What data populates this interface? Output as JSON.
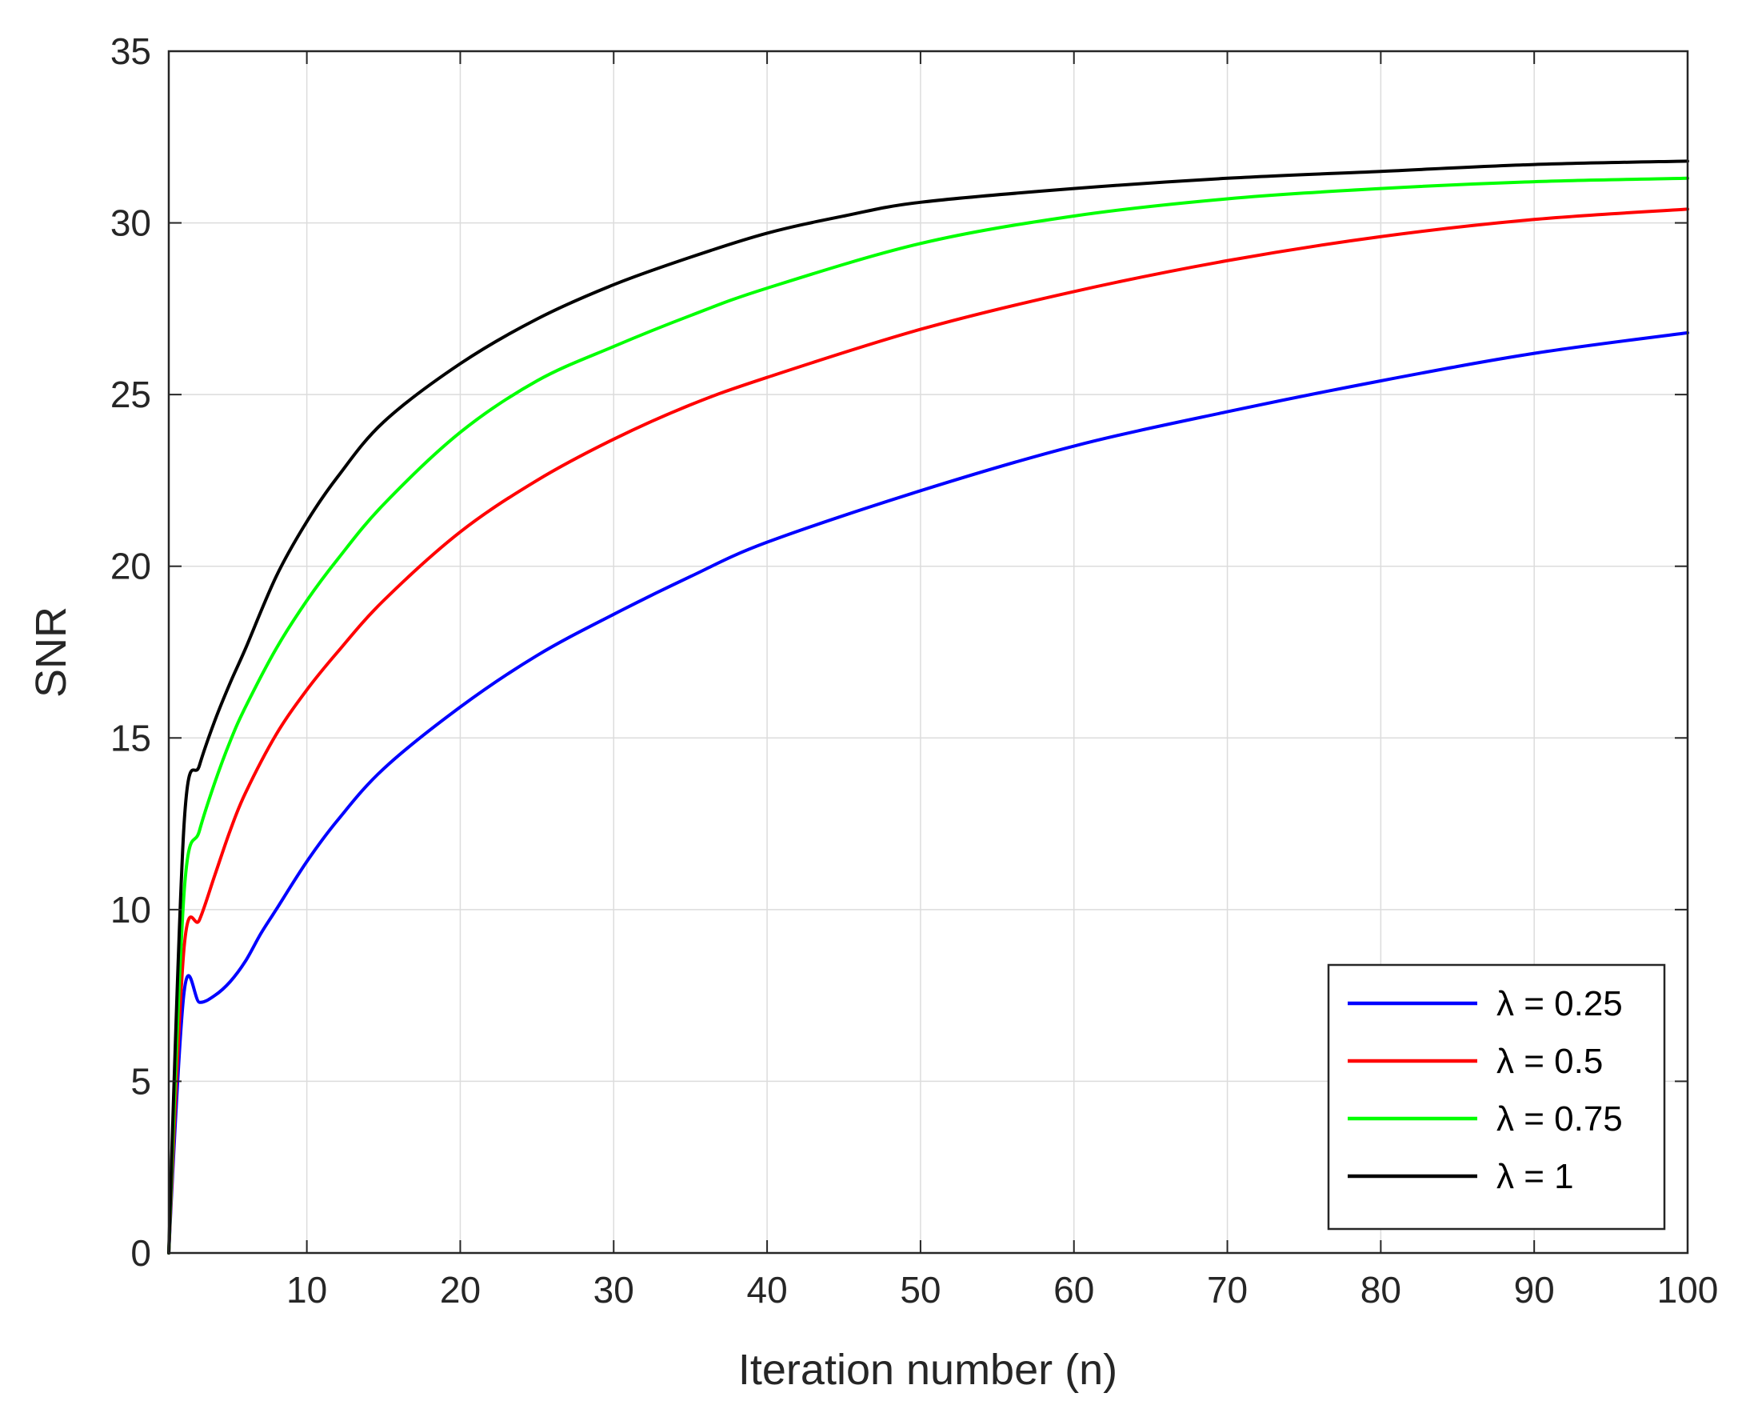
{
  "chart_data": {
    "type": "line",
    "xlabel": "Iteration number (n)",
    "ylabel": "SNR",
    "xlim": [
      1,
      100
    ],
    "ylim": [
      0,
      35
    ],
    "xticks": [
      10,
      20,
      30,
      40,
      50,
      60,
      70,
      80,
      90,
      100
    ],
    "yticks": [
      0,
      5,
      10,
      15,
      20,
      25,
      30,
      35
    ],
    "grid": true,
    "legend_position": "bottom-right",
    "series": [
      {
        "name": "λ = 0.25",
        "color": "#0000ff",
        "x": [
          1,
          2,
          3,
          4,
          5,
          6,
          7,
          8,
          10,
          12,
          15,
          20,
          25,
          30,
          35,
          40,
          50,
          60,
          70,
          80,
          90,
          100
        ],
        "y": [
          0,
          7.6,
          7.3,
          7.5,
          7.9,
          8.5,
          9.3,
          10.0,
          11.4,
          12.6,
          14.1,
          15.9,
          17.4,
          18.6,
          19.7,
          20.7,
          22.2,
          23.5,
          24.5,
          25.4,
          26.2,
          26.8
        ]
      },
      {
        "name": "λ = 0.5",
        "color": "#ff0000",
        "x": [
          1,
          2,
          3,
          4,
          5,
          6,
          8,
          10,
          12,
          15,
          20,
          25,
          30,
          35,
          40,
          50,
          60,
          70,
          80,
          90,
          100
        ],
        "y": [
          0,
          8.9,
          9.7,
          11.0,
          12.3,
          13.4,
          15.1,
          16.4,
          17.5,
          19.0,
          21.0,
          22.5,
          23.7,
          24.7,
          25.5,
          26.9,
          28.0,
          28.9,
          29.6,
          30.1,
          30.4
        ]
      },
      {
        "name": "λ = 0.75",
        "color": "#00ff00",
        "x": [
          1,
          2,
          3,
          4,
          5,
          6,
          8,
          10,
          12,
          15,
          20,
          25,
          30,
          35,
          40,
          50,
          60,
          70,
          80,
          90,
          100
        ],
        "y": [
          0,
          10.5,
          12.3,
          13.7,
          14.9,
          15.9,
          17.6,
          19.0,
          20.2,
          21.8,
          23.9,
          25.4,
          26.4,
          27.3,
          28.1,
          29.4,
          30.2,
          30.7,
          31.0,
          31.2,
          31.3
        ]
      },
      {
        "name": "λ = 1",
        "color": "#000000",
        "x": [
          1,
          2,
          3,
          4,
          5,
          6,
          8,
          10,
          12,
          15,
          20,
          25,
          30,
          35,
          40,
          45,
          50,
          60,
          70,
          80,
          90,
          100
        ],
        "y": [
          0,
          12.5,
          14.2,
          15.5,
          16.6,
          17.6,
          19.7,
          21.3,
          22.6,
          24.2,
          25.9,
          27.2,
          28.2,
          29.0,
          29.7,
          30.2,
          30.6,
          31.0,
          31.3,
          31.5,
          31.7,
          31.8
        ]
      }
    ]
  }
}
